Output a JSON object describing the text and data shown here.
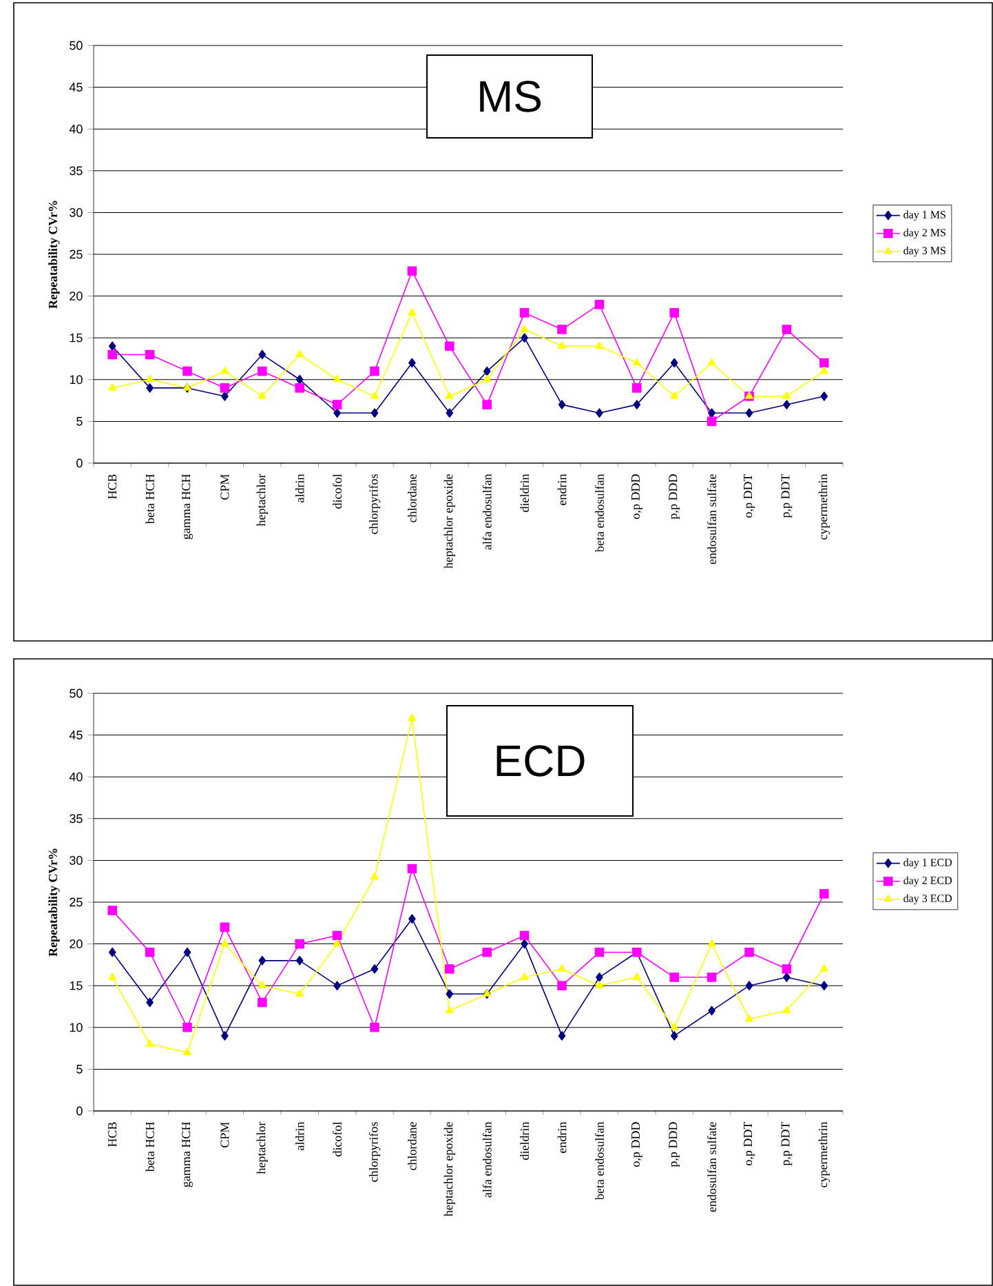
{
  "chart_data": [
    {
      "type": "line",
      "title": "MS",
      "ylabel": "Repeatability CVr%",
      "categories": [
        "HCB",
        "beta HCH",
        "gamma HCH",
        "CPM",
        "heptachlor",
        "aldrin",
        "dicofol",
        "chlorpyrifos",
        "chlordane",
        "heptachlor epoxide",
        "alfa endosulfan",
        "dieldrin",
        "endrin",
        "beta endosulfan",
        "o,p DDD",
        "p,p DDD",
        "endosulfan sulfate",
        "o,p DDT",
        "p,p DDT",
        "cypermethrin"
      ],
      "series": [
        {
          "name": "day 1 MS",
          "color": "#000080",
          "marker": "diamond",
          "values": [
            14,
            9,
            9,
            8,
            13,
            10,
            6,
            6,
            12,
            6,
            11,
            15,
            7,
            6,
            7,
            12,
            6,
            6,
            7,
            8
          ]
        },
        {
          "name": "day 2 MS",
          "color": "#ff00ff",
          "marker": "square",
          "values": [
            13,
            13,
            11,
            9,
            11,
            9,
            7,
            11,
            23,
            14,
            7,
            18,
            16,
            19,
            9,
            18,
            5,
            8,
            16,
            12
          ]
        },
        {
          "name": "day 3 MS",
          "color": "#ffff00",
          "marker": "triangle",
          "values": [
            9,
            10,
            9,
            11,
            8,
            13,
            10,
            8,
            18,
            8,
            10,
            16,
            14,
            14,
            12,
            8,
            12,
            8,
            8,
            11
          ]
        }
      ],
      "ylim": [
        0,
        50
      ],
      "yticks": [
        0,
        5,
        10,
        15,
        20,
        25,
        30,
        35,
        40,
        45,
        50
      ],
      "grid": "y",
      "legend": "right",
      "line_style": "solid"
    },
    {
      "type": "line",
      "title": "ECD",
      "ylabel": "Repeatability CVr%",
      "categories": [
        "HCB",
        "beta HCH",
        "gamma HCH",
        "CPM",
        "heptachlor",
        "aldrin",
        "dicofol",
        "chlorpyrifos",
        "chlordane",
        "heptachlor epoxide",
        "alfa endosulfan",
        "dieldrin",
        "endrin",
        "beta endosulfan",
        "o,p DDD",
        "p,p DDD",
        "endosulfan sulfate",
        "o,p DDT",
        "p,p DDT",
        "cypermethrin"
      ],
      "series": [
        {
          "name": "day 1 ECD",
          "color": "#000080",
          "marker": "diamond",
          "values": [
            19,
            13,
            19,
            9,
            18,
            18,
            15,
            17,
            23,
            14,
            14,
            20,
            9,
            16,
            19,
            9,
            12,
            15,
            16,
            15
          ]
        },
        {
          "name": "day 2 ECD",
          "color": "#ff00ff",
          "marker": "square",
          "values": [
            24,
            19,
            10,
            22,
            13,
            20,
            21,
            10,
            29,
            17,
            19,
            21,
            15,
            19,
            19,
            16,
            16,
            19,
            17,
            26
          ]
        },
        {
          "name": "day 3 ECD",
          "color": "#ffff00",
          "marker": "triangle",
          "values": [
            16,
            8,
            7,
            20,
            15,
            14,
            20,
            28,
            47,
            12,
            14,
            16,
            17,
            15,
            16,
            10,
            20,
            11,
            12,
            17
          ]
        }
      ],
      "ylim": [
        0,
        50
      ],
      "yticks": [
        0,
        5,
        10,
        15,
        20,
        25,
        30,
        35,
        40,
        45,
        50
      ],
      "grid": "y",
      "legend": "right",
      "line_style": "solid"
    }
  ]
}
